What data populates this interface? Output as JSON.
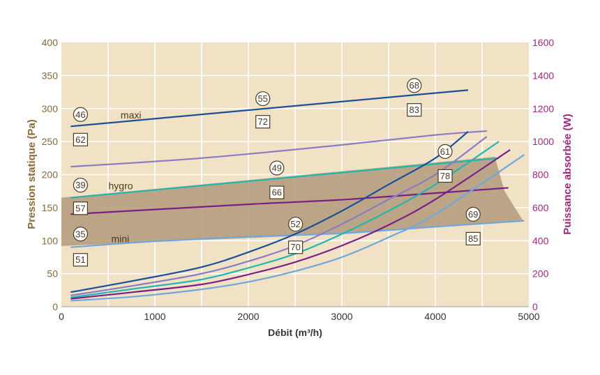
{
  "chart_data": {
    "type": "line",
    "xlabel": "Débit (m³/h)",
    "ylabel_left": "Pression statique (Pa)",
    "ylabel_right": "Puissance absorbée (W)",
    "xlim": [
      0,
      5000
    ],
    "ylim_left": [
      0,
      400
    ],
    "ylim_right": [
      0,
      1600
    ],
    "x_ticks": [
      "0",
      "1000",
      "2000",
      "3000",
      "4000",
      "5000"
    ],
    "y_ticks_left": [
      "0",
      "50",
      "100",
      "150",
      "200",
      "250",
      "300",
      "350",
      "400"
    ],
    "y_ticks_right": [
      "0",
      "200",
      "400",
      "600",
      "800",
      "1000",
      "1200",
      "1400",
      "1600"
    ],
    "grid": true,
    "colors": {
      "background": "#f1e2c6",
      "grid": "#ffffff",
      "band": "#b39a7a",
      "left_axis": "#8a6a3a",
      "right_axis": "#a0287a",
      "maxi": "#1a4f9a",
      "light_purple": "#8a7cc4",
      "hygro": "#21b7b0",
      "purple": "#7a1f86",
      "mini": "#6fa8dc"
    },
    "band_polygon": [
      [
        4640,
        225
      ],
      [
        4740,
        175
      ],
      [
        4940,
        130
      ],
      [
        2500,
        107
      ],
      [
        0,
        92
      ],
      [
        0,
        165
      ],
      [
        4640,
        227
      ]
    ],
    "pressure_series": [
      {
        "name": "maxi",
        "axis": "left",
        "color": "#1a4f9a",
        "points": [
          [
            100,
            273
          ],
          [
            4350,
            328
          ]
        ]
      },
      {
        "axis": "left",
        "color": "#8a7cc4",
        "points": [
          [
            100,
            212
          ],
          [
            1500,
            225
          ],
          [
            3000,
            245
          ],
          [
            4000,
            260
          ],
          [
            4550,
            266
          ]
        ]
      },
      {
        "name": "hygro",
        "axis": "left",
        "color": "#21b7b0",
        "points": [
          [
            100,
            165
          ],
          [
            4680,
            225
          ]
        ]
      },
      {
        "axis": "left",
        "color": "#7a1f86",
        "points": [
          [
            100,
            140
          ],
          [
            2000,
            155
          ],
          [
            3000,
            162
          ],
          [
            4000,
            172
          ],
          [
            4780,
            180
          ]
        ]
      },
      {
        "name": "mini",
        "axis": "left",
        "color": "#6fa8dc",
        "points": [
          [
            100,
            90
          ],
          [
            1000,
            99
          ],
          [
            2000,
            106
          ],
          [
            3000,
            111
          ],
          [
            4000,
            121
          ],
          [
            4950,
            130
          ]
        ]
      }
    ],
    "power_series": [
      {
        "axis": "right",
        "color": "#1a4f9a",
        "points": [
          [
            100,
            88
          ],
          [
            800,
            160
          ],
          [
            1500,
            240
          ],
          [
            2000,
            330
          ],
          [
            2500,
            440
          ],
          [
            3000,
            580
          ],
          [
            3500,
            740
          ],
          [
            4000,
            900
          ],
          [
            4350,
            1060
          ]
        ]
      },
      {
        "axis": "right",
        "color": "#8a7cc4",
        "points": [
          [
            100,
            68
          ],
          [
            800,
            130
          ],
          [
            1500,
            200
          ],
          [
            2000,
            275
          ],
          [
            2500,
            370
          ],
          [
            3000,
            500
          ],
          [
            3500,
            650
          ],
          [
            4000,
            800
          ],
          [
            4550,
            1030
          ]
        ]
      },
      {
        "axis": "right",
        "color": "#21b7b0",
        "points": [
          [
            100,
            56
          ],
          [
            800,
            110
          ],
          [
            1500,
            165
          ],
          [
            2000,
            235
          ],
          [
            2500,
            320
          ],
          [
            3000,
            440
          ],
          [
            3500,
            580
          ],
          [
            4000,
            740
          ],
          [
            4680,
            1000
          ]
        ]
      },
      {
        "axis": "right",
        "color": "#7a1f86",
        "points": [
          [
            100,
            48
          ],
          [
            800,
            90
          ],
          [
            1500,
            135
          ],
          [
            2000,
            195
          ],
          [
            2500,
            270
          ],
          [
            3000,
            370
          ],
          [
            3500,
            495
          ],
          [
            4000,
            650
          ],
          [
            4800,
            950
          ]
        ]
      },
      {
        "axis": "right",
        "color": "#6fa8dc",
        "points": [
          [
            100,
            36
          ],
          [
            800,
            62
          ],
          [
            1500,
            105
          ],
          [
            2000,
            150
          ],
          [
            2500,
            215
          ],
          [
            3000,
            300
          ],
          [
            3500,
            420
          ],
          [
            4000,
            560
          ],
          [
            4950,
            920
          ]
        ]
      }
    ],
    "series_labels": [
      {
        "text": "maxi",
        "x": 380,
        "y": 290
      },
      {
        "text": "hygro",
        "x": 250,
        "y": 183
      },
      {
        "text": "mini",
        "x": 280,
        "y": 103
      }
    ],
    "circle_marks": [
      {
        "text": "46",
        "x": 100,
        "y": 291
      },
      {
        "text": "55",
        "x": 2050,
        "y": 315
      },
      {
        "text": "68",
        "x": 3670,
        "y": 335
      },
      {
        "text": "61",
        "x": 4000,
        "y": 235
      },
      {
        "text": "49",
        "x": 2200,
        "y": 210
      },
      {
        "text": "39",
        "x": 100,
        "y": 184
      },
      {
        "text": "52",
        "x": 2400,
        "y": 125
      },
      {
        "text": "35",
        "x": 100,
        "y": 110
      },
      {
        "text": "69",
        "x": 4300,
        "y": 140
      }
    ],
    "square_marks": [
      {
        "text": "83",
        "x": 3670,
        "y": 298
      },
      {
        "text": "62",
        "x": 100,
        "y": 253
      },
      {
        "text": "72",
        "x": 2050,
        "y": 280
      },
      {
        "text": "78",
        "x": 4000,
        "y": 198
      },
      {
        "text": "66",
        "x": 2200,
        "y": 173
      },
      {
        "text": "57",
        "x": 100,
        "y": 149
      },
      {
        "text": "70",
        "x": 2400,
        "y": 90
      },
      {
        "text": "51",
        "x": 100,
        "y": 71
      },
      {
        "text": "85",
        "x": 4300,
        "y": 103
      }
    ]
  }
}
